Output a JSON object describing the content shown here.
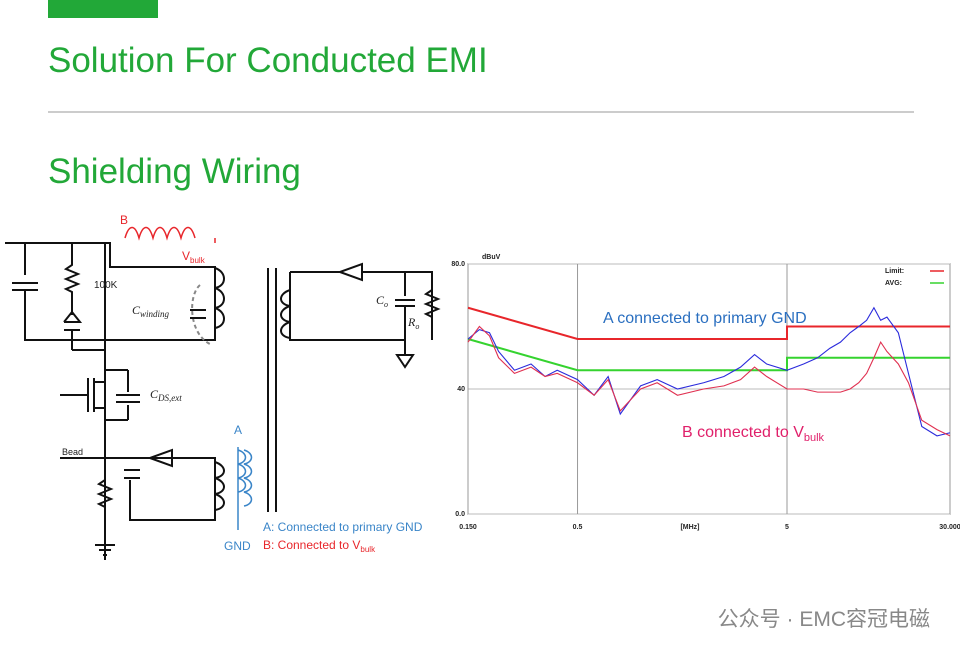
{
  "header": {
    "title": "Solution For Conducted EMI",
    "subtitle": "Shielding Wiring"
  },
  "schematic": {
    "label_b": "B",
    "vbulk": {
      "text": "V",
      "sub": "bulk"
    },
    "resistor": "100K",
    "cwinding": {
      "text": "C",
      "sub": "winding"
    },
    "cdsext": {
      "text": "C",
      "sub": "DS,ext"
    },
    "bead": "Bead",
    "label_a": "A",
    "gnd": "GND",
    "note_a": "A: Connected to primary GND",
    "note_b": {
      "text": "B: Connected to V",
      "sub": "bulk"
    },
    "co": {
      "text": "C",
      "sub": "o"
    },
    "ro": {
      "text": "R",
      "sub": "o"
    }
  },
  "chart_data": {
    "type": "line",
    "y_label": "dBuV",
    "x_label": "[MHz]",
    "log_x": true,
    "xlim": [
      0.15,
      30
    ],
    "ylim": [
      0,
      80
    ],
    "xticks": [
      {
        "value": 0.15,
        "label": "0.150"
      },
      0.5,
      5,
      {
        "value": 30,
        "label": "30.000"
      }
    ],
    "yticks": [
      {
        "value": 0,
        "label": "0.0"
      },
      40,
      {
        "value": 80,
        "label": "80.0"
      }
    ],
    "grid": true,
    "legend": "top-right",
    "x": [
      0.15,
      0.17,
      0.19,
      0.21,
      0.25,
      0.3,
      0.35,
      0.4,
      0.5,
      0.6,
      0.7,
      0.8,
      1,
      1.2,
      1.5,
      2,
      2.5,
      3,
      3.5,
      4,
      5,
      6,
      7,
      8,
      9,
      10,
      11,
      12,
      13,
      14,
      15,
      17,
      19,
      22,
      26,
      30
    ],
    "series": [
      {
        "name": "Limit:",
        "color": "#e8262b",
        "x": [
          0.15,
          0.5,
          5,
          5,
          30
        ],
        "values": [
          66,
          56,
          56,
          60,
          60
        ]
      },
      {
        "name": "AVG:",
        "color": "#35d32f",
        "x": [
          0.15,
          0.5,
          5,
          5,
          30
        ],
        "values": [
          56,
          46,
          46,
          50,
          50
        ]
      },
      {
        "color": "#2b2bdc",
        "values": [
          56,
          59,
          58,
          52,
          46,
          48,
          44,
          46,
          43,
          38,
          44,
          32,
          41,
          43,
          40,
          42,
          44,
          47,
          51,
          48,
          46,
          48,
          50,
          53,
          55,
          58,
          60,
          62,
          66,
          62,
          63,
          58,
          45,
          28,
          25,
          26
        ]
      },
      {
        "color": "#e03050",
        "values": [
          55,
          60,
          57,
          50,
          45,
          47,
          44,
          45,
          42,
          38,
          43,
          33,
          40,
          42,
          38,
          40,
          41,
          43,
          47,
          44,
          40,
          40,
          39,
          39,
          39,
          40,
          42,
          45,
          50,
          55,
          52,
          48,
          42,
          30,
          27,
          25
        ]
      }
    ],
    "annotations": [
      {
        "text": "A connected to primary GND",
        "color": "#2a6fc0"
      },
      {
        "text": "B connected to V",
        "sub": "bulk",
        "color": "#e0206a"
      }
    ]
  },
  "watermark": "公众号 · EMC容冠电磁"
}
